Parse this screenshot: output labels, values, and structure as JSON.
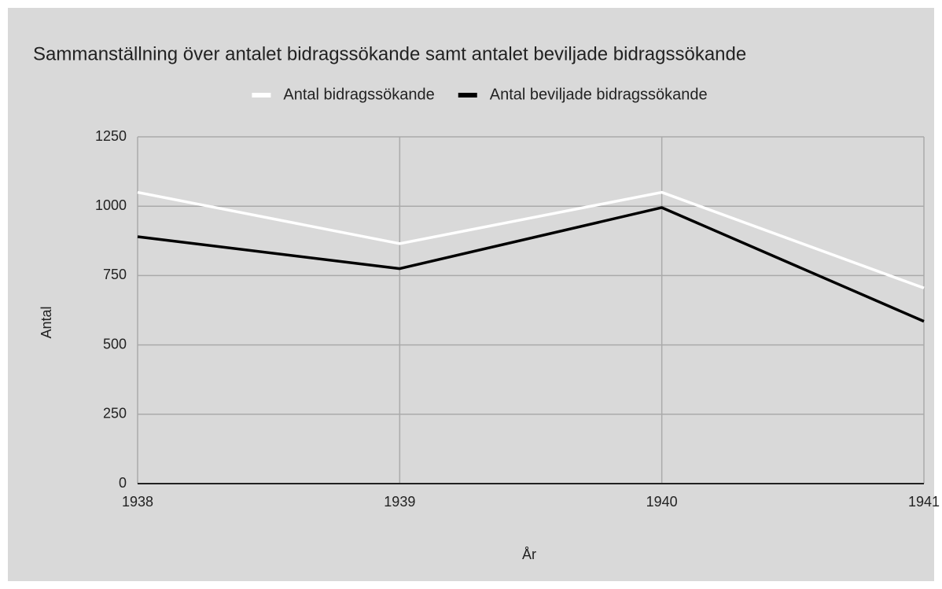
{
  "chart_data": {
    "type": "line",
    "title": "Sammanställning över antalet bidragssökande samt antalet beviljade bidragssökande",
    "x_label": "År",
    "y_label": "Antal",
    "x": [
      1938,
      1939,
      1940,
      1941
    ],
    "series": [
      {
        "name": "Antal bidragssökande",
        "color": "#ffffff",
        "values": [
          1050,
          865,
          1050,
          705
        ]
      },
      {
        "name": "Antal beviljade bidragssökande",
        "color": "#000000",
        "values": [
          890,
          775,
          995,
          585
        ]
      }
    ],
    "xlim": [
      1938,
      1941
    ],
    "xticks": [
      1938,
      1939,
      1940,
      1941
    ],
    "ylim": [
      0,
      1250
    ],
    "yticks": [
      0,
      250,
      500,
      750,
      1000,
      1250
    ],
    "grid": true,
    "legend": "top"
  }
}
